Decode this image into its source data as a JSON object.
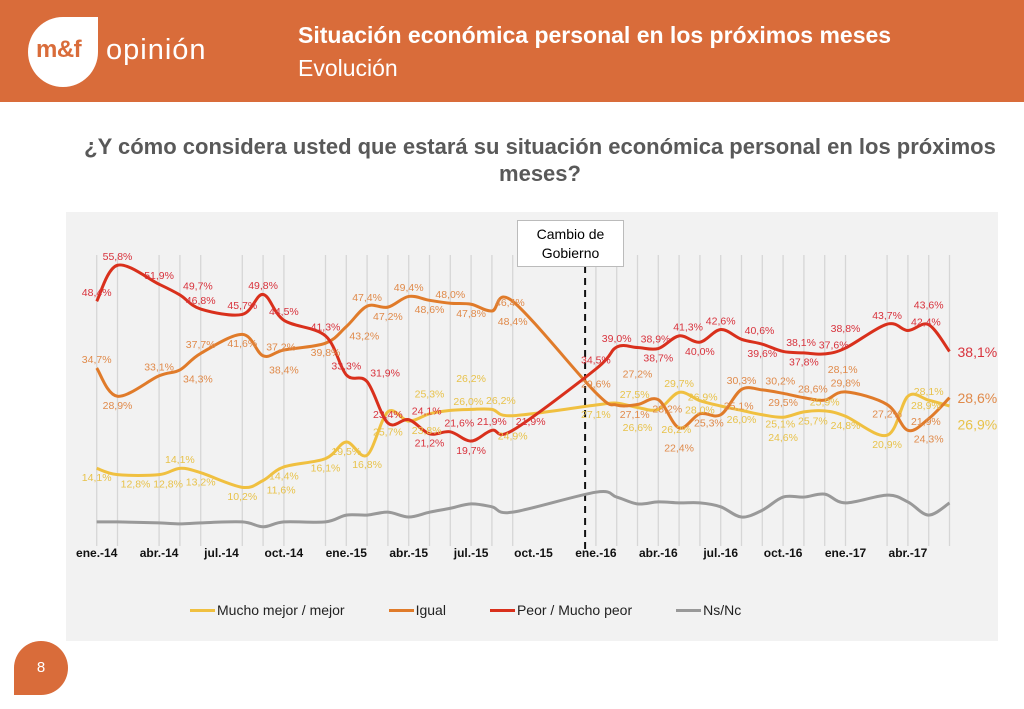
{
  "header": {
    "logo_mark": "m&f",
    "logo_text": "opinión",
    "title": "Situación económica personal en los próximos meses",
    "subtitle": "Evolución"
  },
  "question": "¿Y cómo considera usted que estará su situación económica personal en los próximos meses?",
  "page_number": "8",
  "colors": {
    "header": "#D96C3A",
    "panel": "#f2f2f2"
  },
  "chart_data": {
    "type": "line",
    "annotation": {
      "text_line1": "Cambio de",
      "text_line2": "Gobierno",
      "date": "2015-12"
    },
    "x_tick_labels": [
      "ene.-14",
      "abr.-14",
      "jul.-14",
      "oct.-14",
      "ene.-15",
      "abr.-15",
      "jul.-15",
      "oct.-15",
      "ene.-16",
      "abr.-16",
      "jul.-16",
      "oct.-16",
      "ene.-17",
      "abr.-17"
    ],
    "x": [
      "2014-01",
      "2014-02",
      "2014-04",
      "2014-05",
      "2014-06",
      "2014-08",
      "2014-09",
      "2014-10",
      "2014-12",
      "2015-01",
      "2015-02",
      "2015-03",
      "2015-04",
      "2015-05",
      "2015-06",
      "2015-07",
      "2015-08",
      "2015-09",
      "2016-01",
      "2016-02",
      "2016-03",
      "2016-04",
      "2016-05",
      "2016-06",
      "2016-07",
      "2016-08",
      "2016-09",
      "2016-10",
      "2016-11",
      "2016-12",
      "2017-01",
      "2017-03",
      "2017-04",
      "2017-05",
      "2017-06"
    ],
    "xlim": [
      "2014-01",
      "2017-06"
    ],
    "ylim": [
      0,
      60
    ],
    "grid": "vertical",
    "legend": "bottom",
    "series": [
      {
        "name": "Mucho mejor / mejor",
        "color": "#F0C040",
        "label_color": "#E8C24A",
        "labeled": true,
        "values": [
          14.1,
          12.8,
          12.8,
          14.1,
          13.2,
          10.2,
          11.6,
          14.4,
          16.1,
          19.5,
          16.8,
          25.7,
          23.8,
          25.3,
          26.0,
          26.2,
          26.2,
          24.9,
          27.1,
          27.5,
          26.6,
          26.2,
          29.7,
          28.0,
          26.9,
          26.0,
          25.1,
          24.6,
          25.7,
          25.9,
          24.8,
          20.9,
          28.9,
          28.1,
          26.9
        ]
      },
      {
        "name": "Igual",
        "color": "#E07B2A",
        "label_color": "#E08A4A",
        "labeled": true,
        "values": [
          34.7,
          28.9,
          33.1,
          34.3,
          37.7,
          41.6,
          37.2,
          38.4,
          39.8,
          43.2,
          47.4,
          47.2,
          49.4,
          48.6,
          48.0,
          47.8,
          46.4,
          48.4,
          29.6,
          27.1,
          27.2,
          28.2,
          22.4,
          25.3,
          25.1,
          30.3,
          30.2,
          29.5,
          28.6,
          28.1,
          29.8,
          27.2,
          21.9,
          24.3,
          28.6
        ]
      },
      {
        "name": "Peor / Mucho peor",
        "color": "#D9301C",
        "label_color": "#D8323C",
        "labeled": true,
        "values": [
          48.4,
          55.8,
          51.9,
          49.7,
          46.8,
          45.7,
          49.8,
          44.5,
          41.3,
          33.3,
          31.9,
          23.4,
          24.1,
          21.2,
          21.6,
          19.7,
          21.9,
          21.9,
          34.5,
          39.0,
          38.9,
          38.7,
          41.3,
          40.0,
          42.6,
          40.6,
          39.6,
          38.1,
          37.8,
          37.6,
          38.8,
          43.7,
          42.4,
          43.6,
          38.1
        ]
      },
      {
        "name": "Ns/Nc",
        "color": "#999999",
        "labeled": false,
        "values": [
          3.1,
          3.1,
          2.9,
          2.7,
          2.9,
          3.1,
          2.1,
          3.1,
          3.1,
          4.5,
          4.5,
          5.1,
          4.1,
          5.1,
          5.9,
          6.8,
          6.2,
          5.1,
          9.2,
          8.2,
          6.8,
          7.2,
          7.0,
          7.0,
          6.2,
          4.1,
          5.5,
          8.2,
          8.2,
          8.8,
          7.0,
          8.6,
          7.2,
          4.5,
          7.0
        ]
      }
    ]
  }
}
